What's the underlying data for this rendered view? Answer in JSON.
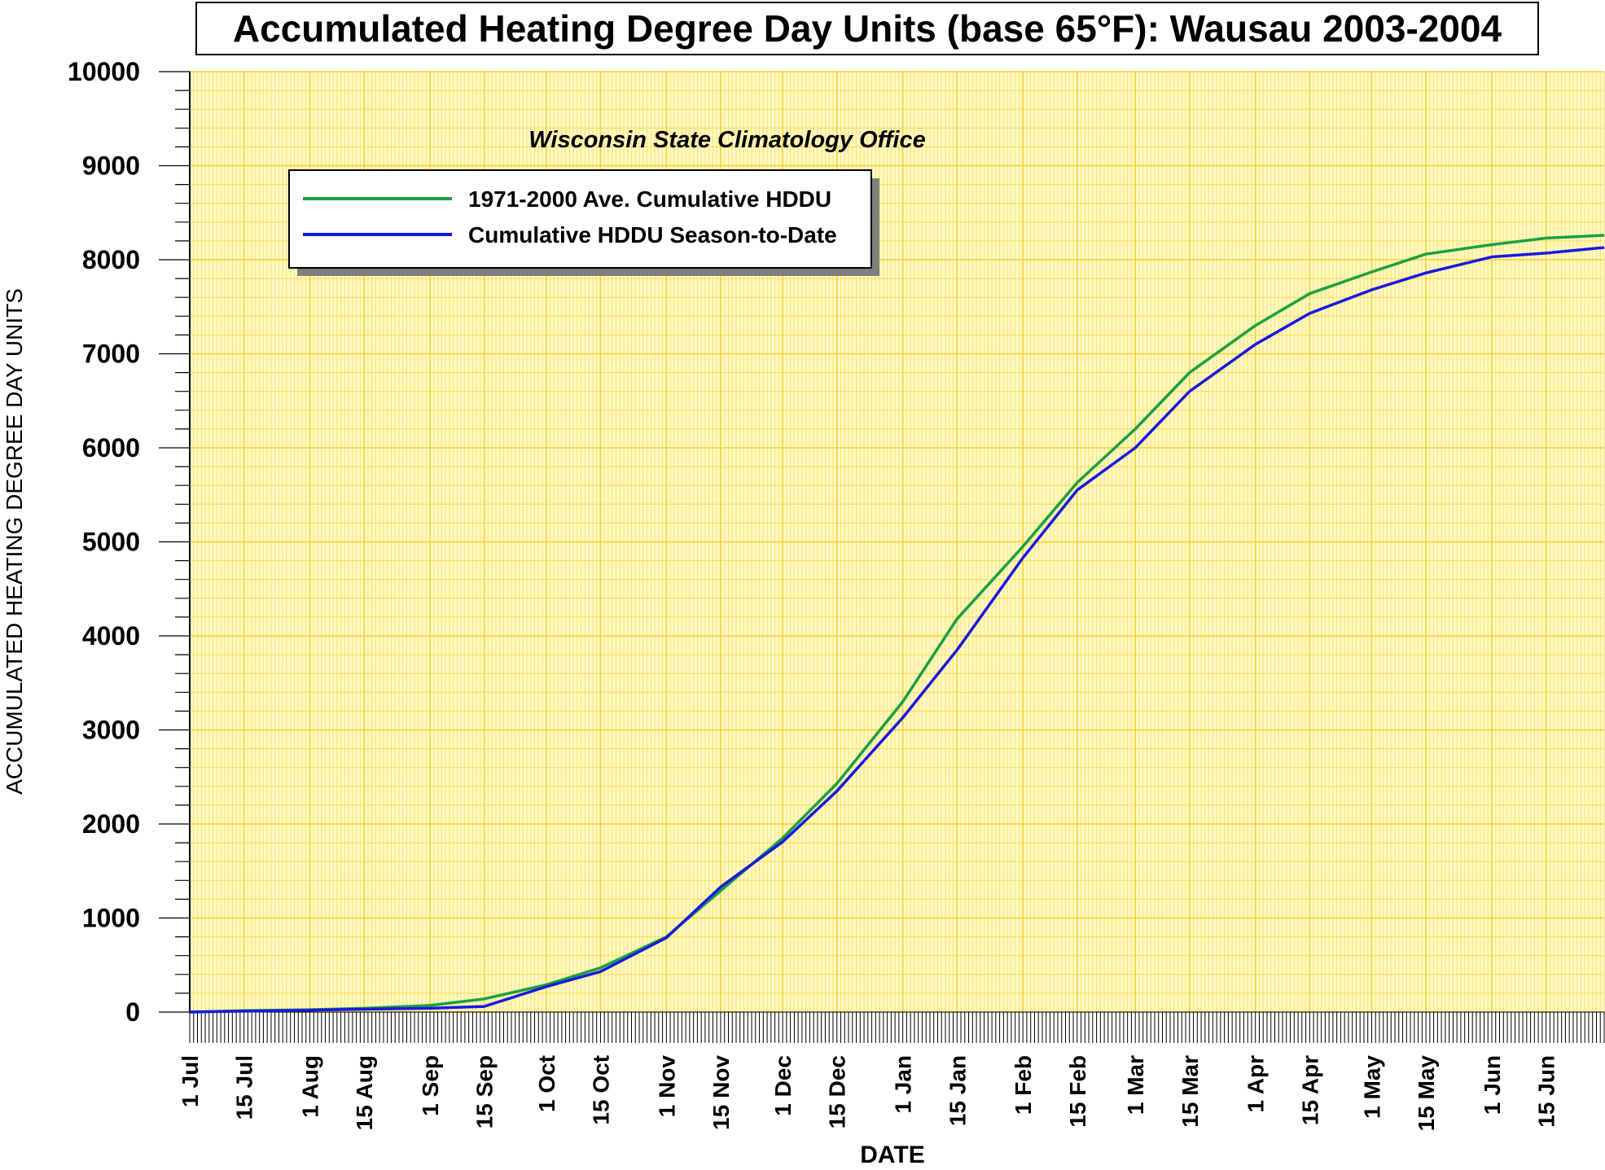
{
  "chart_data": {
    "type": "line",
    "title": "Accumulated Heating Degree Day Units (base 65°F): Wausau 2003-2004",
    "subtitle": "Wisconsin State Climatology Office",
    "xlabel": "DATE",
    "ylabel": "ACCUMULATED HEATING DEGREE DAY UNITS",
    "ylim": [
      0,
      10000
    ],
    "yticks": [
      "0",
      "1000",
      "2000",
      "3000",
      "4000",
      "5000",
      "6000",
      "7000",
      "8000",
      "9000",
      "10000"
    ],
    "xticks": [
      "1 Jul",
      "15 Jul",
      "1 Aug",
      "15 Aug",
      "1 Sep",
      "15 Sep",
      "1 Oct",
      "15 Oct",
      "1 Nov",
      "15 Nov",
      "1 Dec",
      "15 Dec",
      "1 Jan",
      "15 Jan",
      "1 Feb",
      "15 Feb",
      "1 Mar",
      "15 Mar",
      "1 Apr",
      "15 Apr",
      "1 May",
      "15 May",
      "1 Jun",
      "15 Jun"
    ],
    "grid": true,
    "legend_position": "upper-left",
    "background_color": "#fff8c0",
    "grid_color": "#f2d038",
    "series": [
      {
        "name": "1971-2000 Ave. Cumulative HDDU",
        "color": "#18a040",
        "x": [
          "1 Jul",
          "15 Jul",
          "1 Aug",
          "15 Aug",
          "1 Sep",
          "15 Sep",
          "1 Oct",
          "15 Oct",
          "1 Nov",
          "15 Nov",
          "1 Dec",
          "15 Dec",
          "1 Jan",
          "15 Jan",
          "1 Feb",
          "15 Feb",
          "1 Mar",
          "15 Mar",
          "1 Apr",
          "15 Apr",
          "1 May",
          "15 May",
          "1 Jun",
          "15 Jun",
          "30 Jun"
        ],
        "values": [
          0,
          15,
          25,
          40,
          70,
          140,
          290,
          470,
          800,
          1290,
          1850,
          2430,
          3300,
          4180,
          4950,
          5630,
          6200,
          6800,
          7300,
          7640,
          7870,
          8060,
          8160,
          8230,
          8260
        ]
      },
      {
        "name": "Cumulative HDDU Season-to-Date",
        "color": "#1818e0",
        "x": [
          "1 Jul",
          "15 Jul",
          "1 Aug",
          "15 Aug",
          "1 Sep",
          "15 Sep",
          "1 Oct",
          "15 Oct",
          "1 Nov",
          "15 Nov",
          "1 Dec",
          "15 Dec",
          "1 Jan",
          "15 Jan",
          "1 Feb",
          "15 Feb",
          "1 Mar",
          "15 Mar",
          "1 Apr",
          "15 Apr",
          "1 May",
          "15 May",
          "1 Jun",
          "15 Jun",
          "30 Jun"
        ],
        "values": [
          0,
          10,
          20,
          30,
          40,
          60,
          270,
          430,
          790,
          1330,
          1810,
          2350,
          3130,
          3850,
          4830,
          5550,
          6000,
          6600,
          7100,
          7430,
          7680,
          7860,
          8030,
          8070,
          8130
        ]
      }
    ]
  }
}
